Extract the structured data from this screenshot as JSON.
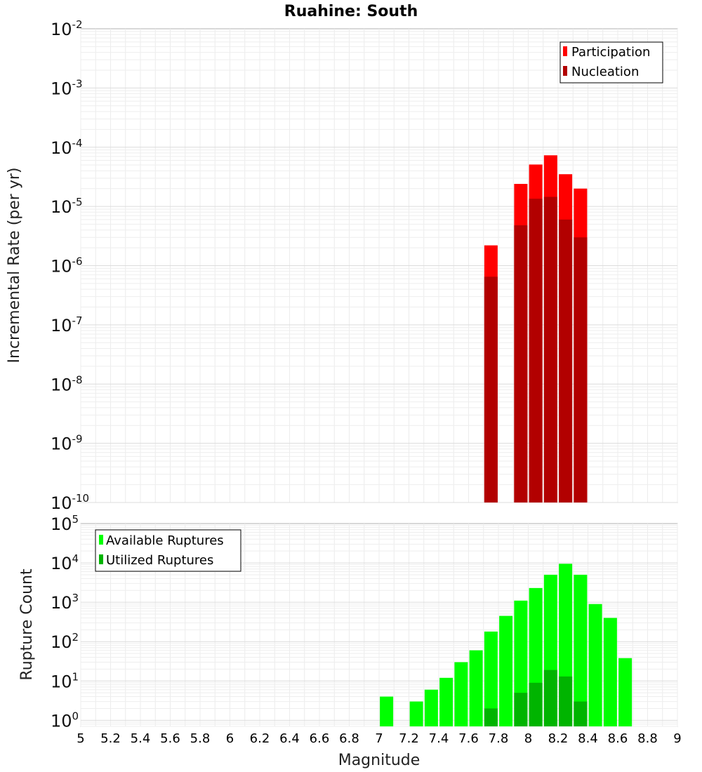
{
  "page": {
    "title": "Ruahine: South"
  },
  "chart_data": [
    {
      "type": "bar",
      "panel": "rate",
      "scale": "log",
      "title": "Ruahine: South",
      "ylabel": "Incremental Rate (per yr)",
      "xlabel": "Magnitude",
      "xlim": [
        5,
        9
      ],
      "ylim": [
        1e-10,
        0.01
      ],
      "ytick_labels": [
        "10^-10",
        "10^-9",
        "10^-8",
        "10^-7",
        "10^-6",
        "10^-5",
        "10^-4",
        "10^-3",
        "10^-2"
      ],
      "legend": {
        "position": "top-right",
        "entries": [
          "Participation",
          "Nucleation"
        ]
      },
      "series": [
        {
          "name": "Participation",
          "color": "#ff0000",
          "x": [
            7.75,
            7.95,
            8.05,
            8.15,
            8.25,
            8.35
          ],
          "values": [
            2.2e-06,
            2.4e-05,
            5.1e-05,
            7.3e-05,
            3.5e-05,
            2e-05
          ]
        },
        {
          "name": "Nucleation",
          "color": "#b20000",
          "x": [
            7.75,
            7.95,
            8.05,
            8.15,
            8.25,
            8.35
          ],
          "values": [
            6.5e-07,
            4.8e-06,
            1.35e-05,
            1.45e-05,
            6e-06,
            3e-06
          ]
        }
      ]
    },
    {
      "type": "bar",
      "panel": "count",
      "scale": "log",
      "ylabel": "Rupture Count",
      "xlabel": "Magnitude",
      "xlim": [
        5,
        9
      ],
      "ylim": [
        0.7,
        100000
      ],
      "ytick_labels": [
        "10^0",
        "10^1",
        "10^2",
        "10^3",
        "10^4",
        "10^5"
      ],
      "xtick_labels": [
        "5",
        "5.2",
        "5.4",
        "5.6",
        "5.8",
        "6",
        "6.2",
        "6.4",
        "6.6",
        "6.8",
        "7",
        "7.2",
        "7.4",
        "7.6",
        "7.8",
        "8",
        "8.2",
        "8.4",
        "8.6",
        "8.8",
        "9"
      ],
      "legend": {
        "position": "top-left",
        "entries": [
          "Available Ruptures",
          "Utilized Ruptures"
        ]
      },
      "series": [
        {
          "name": "Available Ruptures",
          "color": "#00ff00",
          "x": [
            7.05,
            7.25,
            7.35,
            7.45,
            7.55,
            7.65,
            7.75,
            7.85,
            7.95,
            8.05,
            8.15,
            8.25,
            8.35,
            8.45,
            8.55,
            8.65
          ],
          "values": [
            4,
            3,
            6,
            12,
            30,
            60,
            180,
            450,
            1100,
            2300,
            5000,
            9500,
            5000,
            900,
            400,
            38
          ]
        },
        {
          "name": "Utilized Ruptures",
          "color": "#00b400",
          "x": [
            7.75,
            7.95,
            8.05,
            8.15,
            8.25,
            8.35
          ],
          "values": [
            2,
            5,
            9,
            19,
            13,
            3
          ]
        }
      ]
    }
  ]
}
